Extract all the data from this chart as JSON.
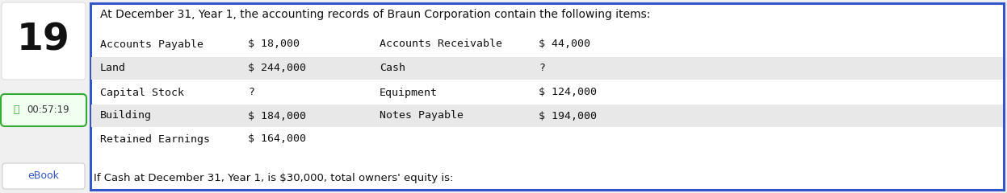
{
  "question_number": "19",
  "timer": "00:57:19",
  "ebook_label": "eBook",
  "header_text": "At December 31, Year 1, the accounting records of Braun Corporation contain the following items:",
  "footer_text": "If Cash at December 31, Year 1, is $30,000, total owners' equity is:",
  "table_rows": [
    [
      "Accounts Payable",
      "$ 18,000",
      "Accounts Receivable",
      "$ 44,000"
    ],
    [
      "Land",
      "$ 244,000",
      "Cash",
      "?"
    ],
    [
      "Capital Stock",
      "?",
      "Equipment",
      "$ 124,000"
    ],
    [
      "Building",
      "$ 184,000",
      "Notes Payable",
      "$ 194,000"
    ],
    [
      "Retained Earnings",
      "$ 164,000",
      "",
      ""
    ]
  ],
  "shaded_rows": [
    1,
    3
  ],
  "bg_color": "#f0f0f0",
  "main_bg": "#ffffff",
  "border_color": "#3355cc",
  "left_panel_bg": "#f0f0f0",
  "shade_color": "#e8e8e8",
  "font_family": "monospace",
  "header_font_size": 10.0,
  "table_font_size": 9.5,
  "footer_font_size": 9.5,
  "question_font_size": 34,
  "timer_font_size": 8.5,
  "ebook_font_size": 9.0,
  "fig_width": 12.47,
  "fig_height": 2.4,
  "dpi": 100
}
